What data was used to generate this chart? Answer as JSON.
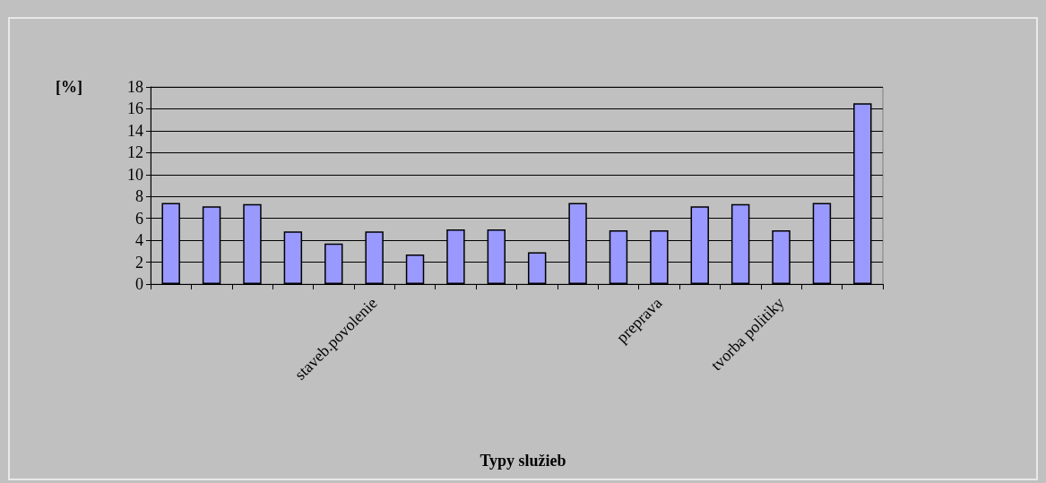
{
  "chart_data": {
    "type": "bar",
    "xlabel": "Typy služieb",
    "ylabel": "[%]",
    "categories": [
      null,
      null,
      null,
      null,
      null,
      "staveb.povolenie",
      null,
      null,
      null,
      null,
      null,
      null,
      "preprava",
      null,
      null,
      "tvorba politiky",
      null,
      null
    ],
    "values": [
      7.4,
      7.1,
      7.3,
      4.8,
      3.7,
      4.8,
      2.7,
      5.0,
      5.0,
      2.9,
      7.4,
      4.9,
      4.9,
      7.1,
      7.3,
      4.9,
      7.4,
      16.5
    ],
    "color": "#9999ff",
    "ylim": [
      0,
      18
    ],
    "yticks": [
      0,
      2,
      4,
      6,
      8,
      10,
      12,
      14,
      16,
      18
    ],
    "grid": "y"
  }
}
